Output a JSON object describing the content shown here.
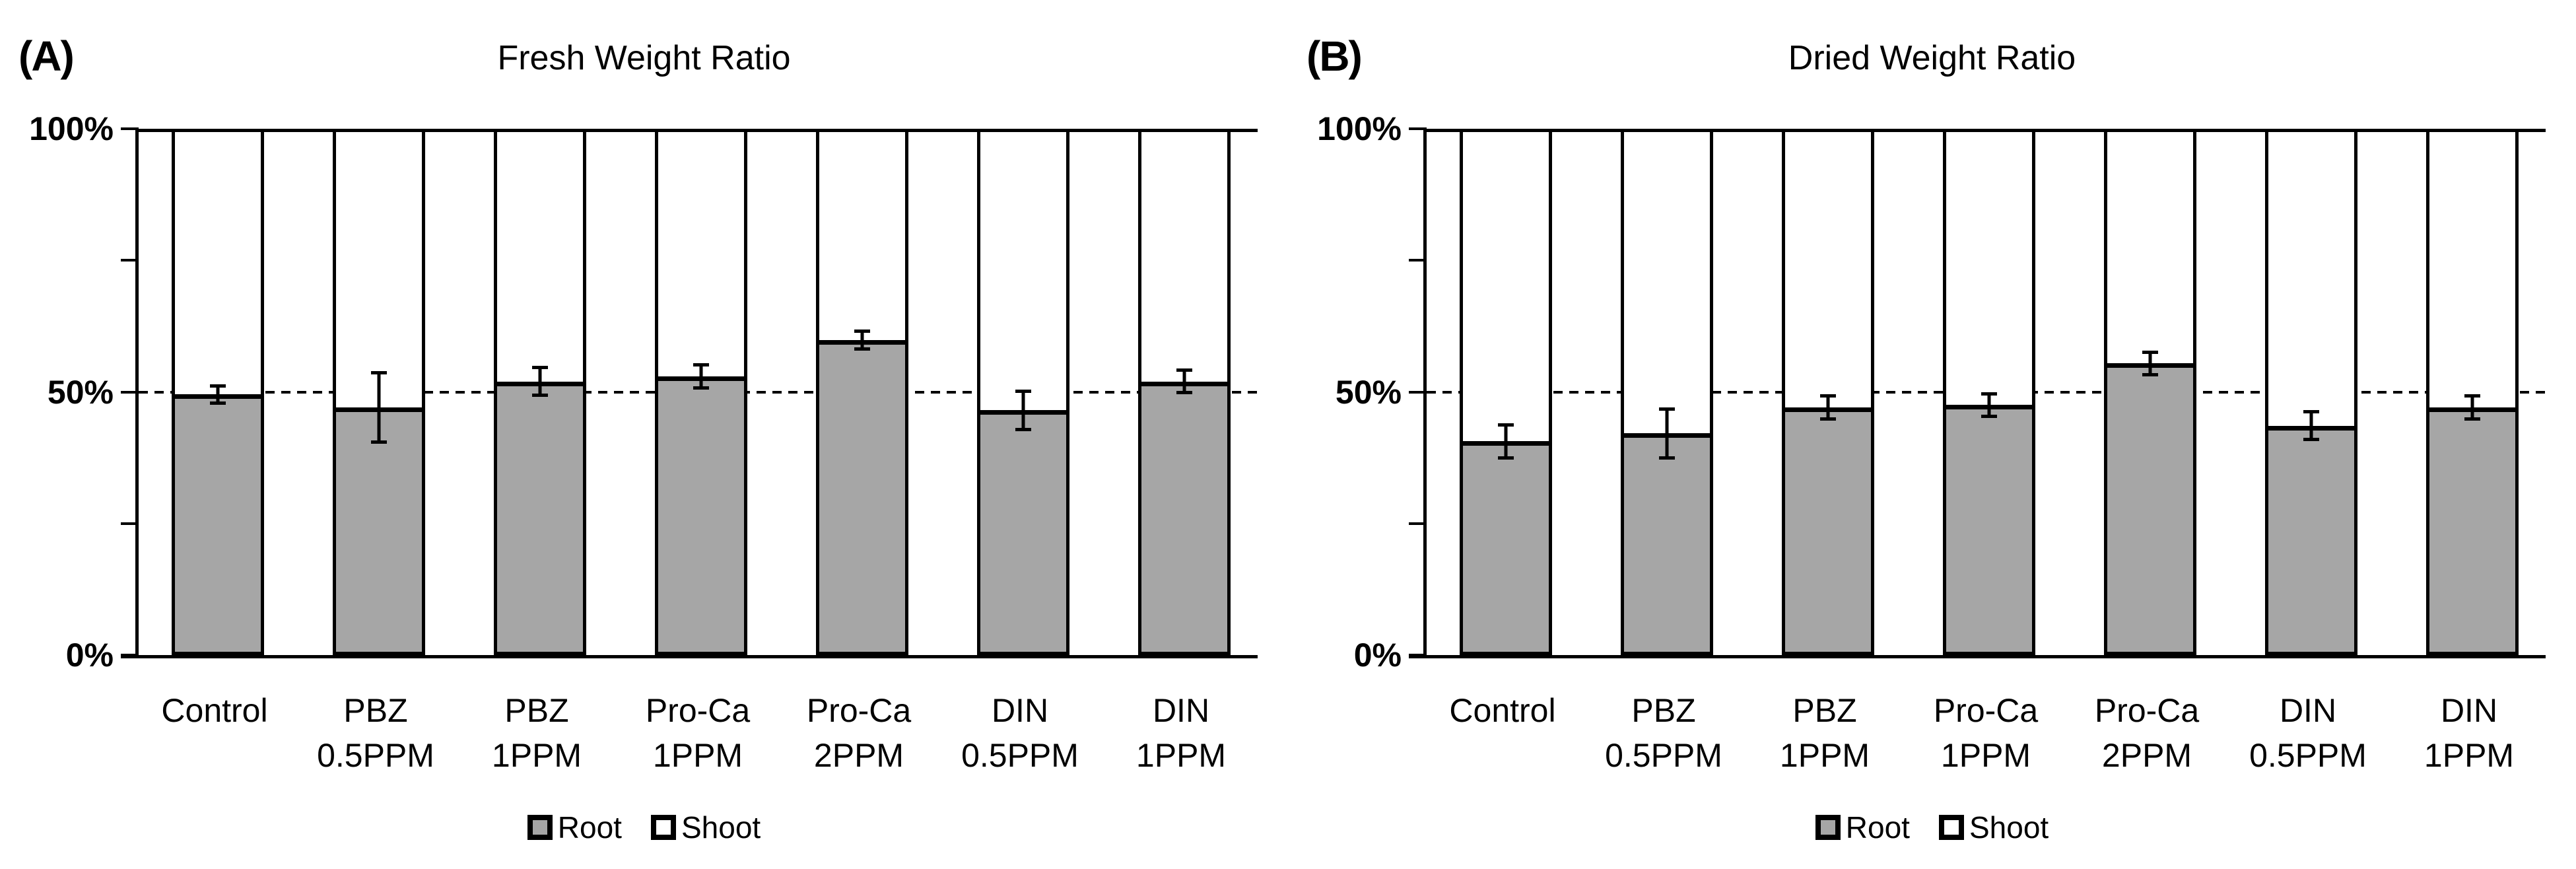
{
  "panels": [
    {
      "panel_label": "(A)",
      "title": "Fresh Weight Ratio",
      "y_axis": {
        "labels": [
          "100%",
          "50%",
          "0%"
        ]
      }
    },
    {
      "panel_label": "(B)",
      "title": "Dried Weight Ratio",
      "y_axis": {
        "labels": [
          "100%",
          "50%",
          "0%"
        ]
      }
    }
  ],
  "chart_data": [
    {
      "type": "bar",
      "stacked": true,
      "title": "Fresh Weight Ratio",
      "categories": [
        "Control",
        "PBZ 0.5PPM",
        "PBZ 1PPM",
        "Pro-Ca 1PPM",
        "Pro-Ca 2PPM",
        "DIN 0.5PPM",
        "DIN 1PPM"
      ],
      "category_lines": [
        [
          "Control"
        ],
        [
          "PBZ",
          "0.5PPM"
        ],
        [
          "PBZ",
          "1PPM"
        ],
        [
          "Pro-Ca",
          "1PPM"
        ],
        [
          "Pro-Ca",
          "2PPM"
        ],
        [
          "DIN",
          "0.5PPM"
        ],
        [
          "DIN",
          "1PPM"
        ]
      ],
      "series": [
        {
          "name": "Root",
          "color": "#a6a6a6",
          "values": [
            49.5,
            47,
            52,
            53,
            60,
            46.5,
            52
          ],
          "error": [
            2,
            7,
            3,
            2.5,
            2,
            4,
            2.5
          ]
        },
        {
          "name": "Shoot",
          "color": "#ffffff",
          "values": [
            50.5,
            53,
            48,
            47,
            40,
            53.5,
            48
          ]
        }
      ],
      "ylabel": "",
      "ylim": [
        0,
        100
      ],
      "ytick_interval": 25,
      "yticks_labeled": [
        "0%",
        "50%",
        "100%"
      ],
      "gridlines": {
        "solid_at": 100,
        "dashed_at": 50
      },
      "legend_position": "bottom"
    },
    {
      "type": "bar",
      "stacked": true,
      "title": "Dried Weight Ratio",
      "categories": [
        "Control",
        "PBZ 0.5PPM",
        "PBZ 1PPM",
        "Pro-Ca 1PPM",
        "Pro-Ca 2PPM",
        "DIN 0.5PPM",
        "DIN 1PPM"
      ],
      "category_lines": [
        [
          "Control"
        ],
        [
          "PBZ",
          "0.5PPM"
        ],
        [
          "PBZ",
          "1PPM"
        ],
        [
          "Pro-Ca",
          "1PPM"
        ],
        [
          "Pro-Ca",
          "2PPM"
        ],
        [
          "DIN",
          "0.5PPM"
        ],
        [
          "DIN",
          "1PPM"
        ]
      ],
      "series": [
        {
          "name": "Root",
          "color": "#a6a6a6",
          "values": [
            40.5,
            42,
            47,
            47.5,
            55.5,
            43.5,
            47
          ],
          "error": [
            3.5,
            5,
            2.5,
            2.5,
            2.5,
            3,
            2.5
          ]
        },
        {
          "name": "Shoot",
          "color": "#ffffff",
          "values": [
            59.5,
            58,
            53,
            52.5,
            44.5,
            56.5,
            53
          ]
        }
      ],
      "ylabel": "",
      "ylim": [
        0,
        100
      ],
      "ytick_interval": 25,
      "yticks_labeled": [
        "0%",
        "50%",
        "100%"
      ],
      "gridlines": {
        "solid_at": 100,
        "dashed_at": 50
      },
      "legend_position": "bottom"
    }
  ]
}
